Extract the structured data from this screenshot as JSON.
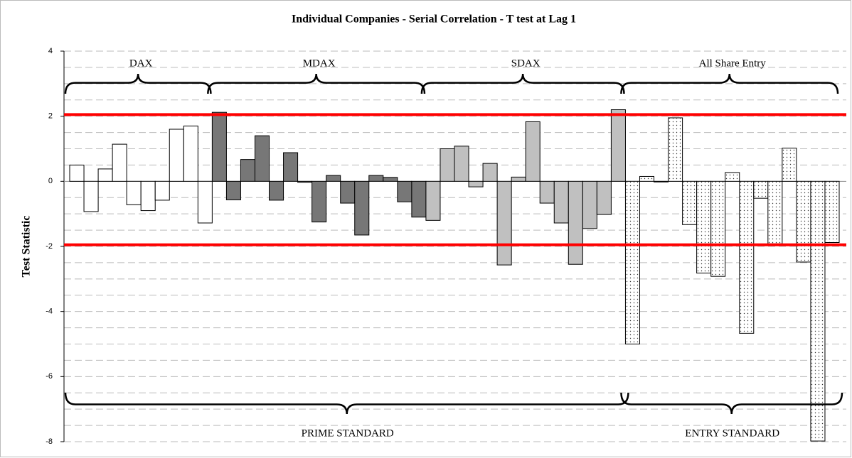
{
  "chart_data": {
    "type": "bar",
    "title": "Individual Companies - Serial Correlation - T test at Lag 1",
    "y_label": "Test Statistic",
    "ylim": [
      -8,
      4
    ],
    "yticks": [
      4,
      2,
      0,
      -2,
      -4,
      -6,
      -8
    ],
    "ygrid": [
      4,
      3.5,
      3,
      2.5,
      2,
      1.5,
      1,
      0.5,
      -0.5,
      -1,
      -1.5,
      -2,
      -2.5,
      -3,
      -3.5,
      -4,
      -4.5,
      -5,
      -5.5,
      -6,
      -6.5,
      -7,
      -7.5,
      -8
    ],
    "reference_lines": [
      {
        "value": 2.05,
        "color": "#ff0000"
      },
      {
        "value": -1.95,
        "color": "#ff0000"
      }
    ],
    "groups": [
      {
        "label": "PRIME STANDARD",
        "series": [
          {
            "name": "DAX",
            "color": "#ffffff",
            "values": [
              0.5,
              -0.93,
              0.38,
              1.14,
              -0.72,
              -0.9,
              -0.58,
              1.6,
              1.7,
              -1.28
            ]
          },
          {
            "name": "MDAX",
            "color": "#777777",
            "values": [
              2.12,
              -0.57,
              0.67,
              1.4,
              -0.58,
              0.88,
              -0.03,
              -1.25,
              0.18,
              -0.67,
              -1.65,
              0.18,
              0.12,
              -0.63,
              -1.1
            ]
          },
          {
            "name": "SDAX",
            "color": "#c0c0c0",
            "values": [
              -1.2,
              1.0,
              1.08,
              -0.17,
              0.55,
              -2.57,
              0.13,
              1.83,
              -0.67,
              -1.28,
              -2.55,
              -1.45,
              -1.02,
              2.2
            ]
          }
        ]
      },
      {
        "label": "ENTRY STANDARD",
        "series": [
          {
            "name": "All Share Entry",
            "color": "#ffffff",
            "pattern": "dots",
            "values": [
              -5.0,
              0.15,
              -0.02,
              1.95,
              -1.33,
              -2.82,
              -2.92,
              0.27,
              -4.67,
              -0.52,
              -1.92,
              1.02,
              -2.48,
              -7.98,
              -1.88
            ]
          }
        ]
      }
    ]
  }
}
